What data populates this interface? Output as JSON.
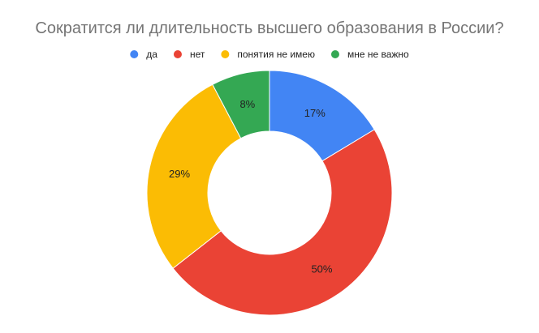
{
  "chart_data": {
    "type": "pie",
    "title": "Сократится ли длительность высшего образования в России?",
    "legend_position": "top",
    "donut": true,
    "categories": [
      "да",
      "нет",
      "понятия не имею",
      "мне не важно"
    ],
    "values": [
      17,
      50,
      29,
      8
    ],
    "value_labels": [
      "17%",
      "50%",
      "29%",
      "8%"
    ],
    "colors": [
      "#4285F4",
      "#EA4335",
      "#FBBC04",
      "#34A853"
    ]
  }
}
